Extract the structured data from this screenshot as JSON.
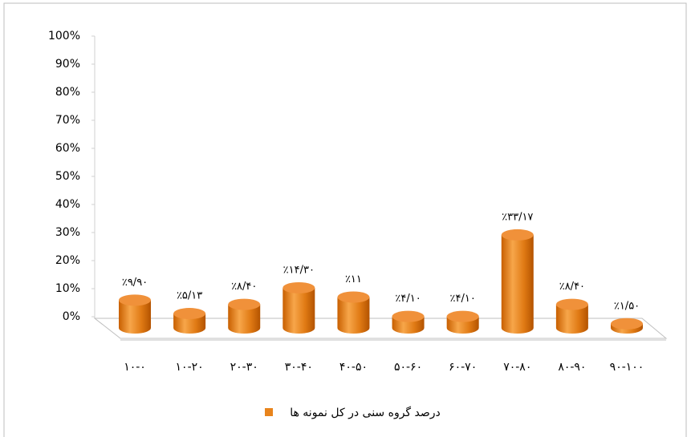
{
  "chart_data": {
    "type": "bar",
    "categories": [
      "۱۰-۰",
      "۱۰-۲۰",
      "۲۰-۳۰",
      "۳۰-۴۰",
      "۴۰-۵۰",
      "۵۰-۶۰",
      "۶۰-۷۰",
      "۷۰-۸۰",
      "۸۰-۹۰",
      "۹۰-۱۰۰"
    ],
    "series": [
      {
        "name": "درصد گروه سنی در کل نمونه ها",
        "color": "#e8841c",
        "values": [
          9.9,
          5.13,
          8.4,
          14.3,
          11,
          4.1,
          4.1,
          33.17,
          8.4,
          1.5
        ],
        "value_labels": [
          "٪۹/۹۰",
          "٪۵/۱۳",
          "٪۸/۴۰",
          "٪۱۴/۳۰",
          "٪۱۱",
          "٪۴/۱۰",
          "٪۴/۱۰",
          "٪۳۳/۱۷",
          "٪۸/۴۰",
          "٪۱/۵۰"
        ]
      }
    ],
    "ylim": [
      0,
      100
    ],
    "yticks": [
      {
        "value": 0,
        "label": "0%"
      },
      {
        "value": 10,
        "label": "10%"
      },
      {
        "value": 20,
        "label": "20%"
      },
      {
        "value": 30,
        "label": "30%"
      },
      {
        "value": 40,
        "label": "40%"
      },
      {
        "value": 50,
        "label": "50%"
      },
      {
        "value": 60,
        "label": "60%"
      },
      {
        "value": 70,
        "label": "70%"
      },
      {
        "value": 80,
        "label": "80%"
      },
      {
        "value": 90,
        "label": "90%"
      },
      {
        "value": 100,
        "label": "100%"
      }
    ],
    "legend": "bottom"
  }
}
